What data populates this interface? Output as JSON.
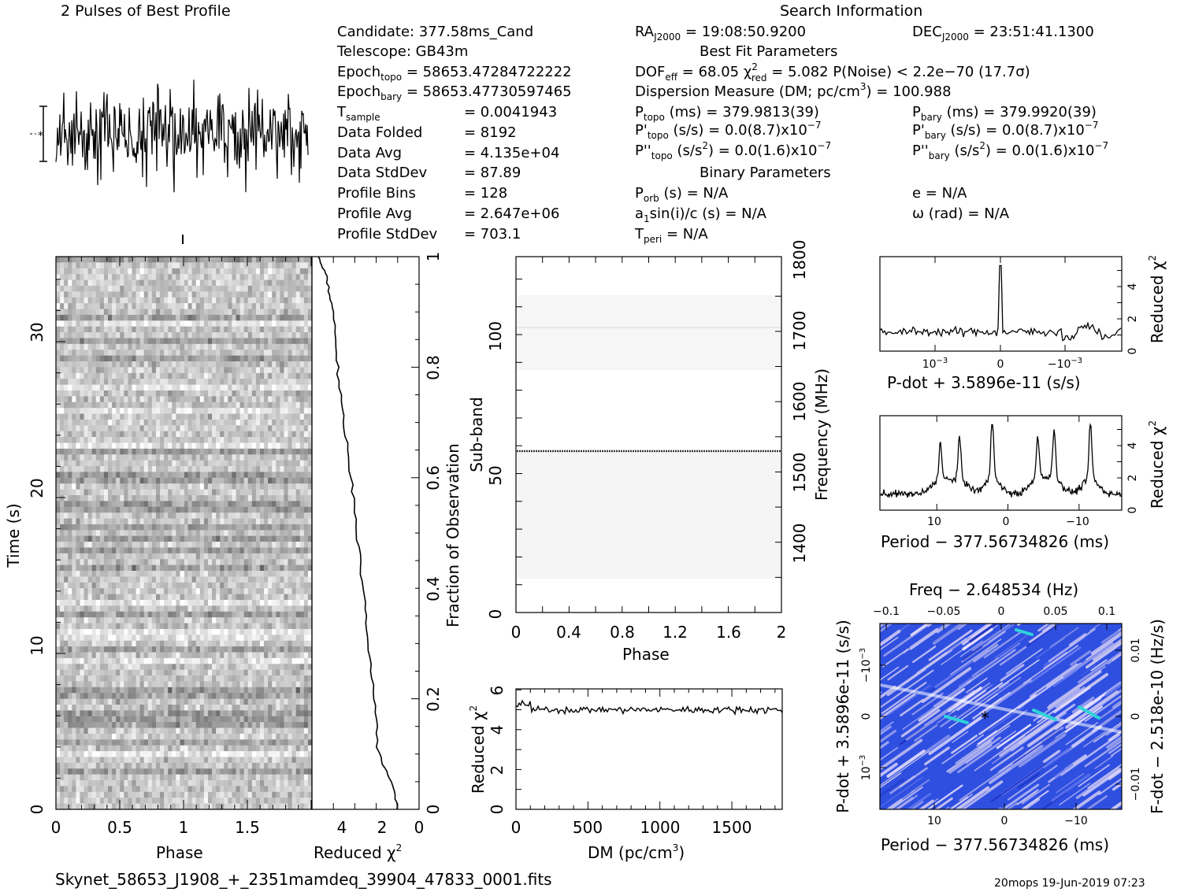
{
  "header": {
    "profile_title": "2 Pulses of Best Profile",
    "search_title": "Search Information",
    "best_fit_title": "Best Fit Parameters",
    "binary_title": "Binary Parameters"
  },
  "info": {
    "candidate": "Candidate:  377.58ms_Cand",
    "telescope": "Telescope:  GB43m",
    "epoch_topo_label": "Epoch",
    "epoch_topo_sub": "topo",
    "epoch_topo_val": " = 58653.47284722222",
    "epoch_bary_label": "Epoch",
    "epoch_bary_sub": "bary",
    "epoch_bary_val": " = 58653.47730597465",
    "tsample_label": "T",
    "tsample_sub": "sample",
    "tsample_val": "=   0.0041943",
    "data_folded_label": "Data Folded",
    "data_folded_val": "=   8192",
    "data_avg_label": "Data Avg",
    "data_avg_val": "=   4.135e+04",
    "data_std_label": "Data StdDev",
    "data_std_val": "=   87.89",
    "prof_bins_label": "Profile Bins",
    "prof_bins_val": "=   128",
    "prof_avg_label": "Profile Avg",
    "prof_avg_val": "=   2.647e+06",
    "prof_std_label": "Profile StdDev",
    "prof_std_val": "=   703.1",
    "ra_label": "RA",
    "ra_sub": "J2000",
    "ra_val": " = 19:08:50.9200",
    "dec_label": "DEC",
    "dec_sub": "J2000",
    "dec_val": " = 23:51:41.1300",
    "dof_label": "DOF",
    "dof_sub": "eff",
    "dof_val": " = 68.05  χ",
    "chi_sup": "2",
    "chi_sub": "red",
    "chi_val": " = 5.082  P(Noise) < 2.2e−70  (17.7σ)",
    "dm_text": "Dispersion Measure (DM; pc/cm",
    "dm_sup": "3",
    "dm_val": ") = 100.988",
    "ptopo_label": "P",
    "ptopo_sub": "topo",
    "ptopo_val": " (ms) =  379.9813(39)",
    "pbary_label": "P",
    "pbary_sub": "bary",
    "pbary_val": " (ms) =  379.9920(39)",
    "pdtopo_label": "P'",
    "pdtopo_sub": "topo",
    "pdtopo_val": " (s/s) = 0.0(8.7)x10",
    "pdtopo_exp": "−7",
    "pdbary_label": "P'",
    "pdbary_sub": "bary",
    "pdbary_val": " (s/s) = 0.0(8.7)x10",
    "pdbary_exp": "−7",
    "pddtopo_label": "P''",
    "pddtopo_sub": "topo",
    "pddtopo_val": " (s/s",
    "pddtopo_sup": "2",
    "pddtopo_val2": ") = 0.0(1.6)x10",
    "pddtopo_exp": "−7",
    "pddbary_label": "P''",
    "pddbary_sub": "bary",
    "pddbary_val": " (s/s",
    "pddbary_sup": "2",
    "pddbary_val2": ") = 0.0(1.6)x10",
    "pddbary_exp": "−7",
    "porb_label": "P",
    "porb_sub": "orb",
    "porb_val": " (s) = N/A",
    "e_text": "e = N/A",
    "a1_label": "a",
    "a1_sub": "1",
    "a1_val": "sin(i)/c (s) = N/A",
    "omega_text": "ω (rad) = N/A",
    "tperi_label": "T",
    "tperi_sub": "peri",
    "tperi_val": " = N/A"
  },
  "axes": {
    "time_label": "Time (s)",
    "phase_label": "Phase",
    "reduced_chi_label": "Reduced χ",
    "chi_sup": "2",
    "fraction_label": "Fraction of Observation",
    "subband_label": "Sub-band",
    "frequency_label": "Frequency (MHz)",
    "dm_label": "DM (pc/cm",
    "dm_sup": "3",
    "dm_close": ")",
    "pdot_label": "P-dot + 3.5896e-11 (s/s)",
    "period_label": "Period − 377.56734826 (ms)",
    "freq_label": "Freq − 2.648534 (Hz)",
    "fdot_label": "F-dot − 2.518e-10 (Hz/s)"
  },
  "footer": {
    "filename": "Skynet_58653_J1908_+_2351mamdeq_39904_47833_0001.fits",
    "stamp": "20mops 19-Jun-2019 07:23"
  },
  "chart_data": [
    {
      "type": "line",
      "title": "2 Pulses of Best Profile",
      "x": [
        0,
        2
      ],
      "note": "noisy profile, no clear pulse"
    },
    {
      "type": "heatmap",
      "xlabel": "Phase",
      "ylabel": "Time (s)",
      "xlim": [
        0,
        2
      ],
      "ylim": [
        0,
        35
      ],
      "xticks": [
        "0",
        "0.5",
        "1",
        "1.5"
      ],
      "yticks": [
        "0",
        "10",
        "20",
        "30"
      ]
    },
    {
      "type": "line",
      "xlabel": "Reduced χ2",
      "ylabel": "Fraction of Observation",
      "xlim": [
        5,
        0
      ],
      "ylim": [
        0,
        1
      ],
      "xticks": [
        "4",
        "2",
        "0"
      ],
      "yticks": [
        "0",
        "0.2",
        "0.4",
        "0.6",
        "0.8",
        "1"
      ],
      "points": [
        [
          1,
          0.0
        ],
        [
          1.3,
          0.05
        ],
        [
          1.9,
          0.1
        ],
        [
          2.1,
          0.2
        ],
        [
          2.4,
          0.3
        ],
        [
          2.6,
          0.4
        ],
        [
          2.9,
          0.5
        ],
        [
          3.2,
          0.6
        ],
        [
          3.5,
          0.7
        ],
        [
          3.8,
          0.8
        ],
        [
          4.0,
          0.9
        ],
        [
          4.3,
          0.96
        ],
        [
          4.7,
          1.0
        ]
      ]
    },
    {
      "type": "heatmap",
      "xlabel": "Phase",
      "ylabel": "Sub-band",
      "y2label": "Frequency (MHz)",
      "xlim": [
        0,
        2
      ],
      "ylim": [
        0,
        128
      ],
      "xticks": [
        "0",
        "0.4",
        "0.8",
        "1.2",
        "1.6",
        "2"
      ],
      "yticks": [
        "0",
        "50",
        "100"
      ],
      "y2ticks": [
        "1400",
        "1500",
        "1600",
        "1700",
        "1800"
      ]
    },
    {
      "type": "line",
      "xlabel": "DM (pc/cm3)",
      "ylabel": "Reduced χ2",
      "xlim": [
        0,
        1850
      ],
      "ylim": [
        0,
        6
      ],
      "xticks": [
        "0",
        "500",
        "1000",
        "1500"
      ],
      "yticks": [
        "0",
        "2",
        "4",
        "6"
      ],
      "level": 5.0
    },
    {
      "type": "line",
      "xlabel": "P-dot + 3.5896e-11 (s/s)",
      "ylabel": "Reduced χ2",
      "xticks": [
        "10−3",
        "0",
        "−10−3"
      ],
      "yticks": [
        "0",
        "2",
        "4"
      ],
      "baseline": 1.2,
      "peak_at": 0,
      "peak": 5.3
    },
    {
      "type": "line",
      "xlabel": "Period − 377.56734826 (ms)",
      "ylabel": "Reduced χ2",
      "xlim": [
        18,
        -16
      ],
      "xticks": [
        "10",
        "0",
        "−10"
      ],
      "yticks": [
        "0",
        "2",
        "4"
      ],
      "peaks": [
        [
          9.5,
          3.2
        ],
        [
          6.8,
          3.5
        ],
        [
          2.2,
          5.0
        ],
        [
          -4.2,
          3.6
        ],
        [
          -6.5,
          4.0
        ],
        [
          -11.6,
          4.5
        ]
      ]
    },
    {
      "type": "heatmap",
      "xlabel": "Period − 377.56734826 (ms)",
      "ylabel": "P-dot + 3.5896e-11 (s/s)",
      "x2label": "Freq − 2.648534 (Hz)",
      "y2label": "F-dot − 2.518e-10 (Hz/s)",
      "xticks": [
        "10",
        "0",
        "−10"
      ],
      "yticks": [
        "−10−3",
        "0",
        "10−3"
      ],
      "x2ticks": [
        "−0.1",
        "−0.05",
        "0",
        "0.05",
        "0.1"
      ],
      "y2ticks": [
        "0.01",
        "0",
        "−0.01"
      ],
      "best": [
        2.2,
        0
      ]
    }
  ]
}
